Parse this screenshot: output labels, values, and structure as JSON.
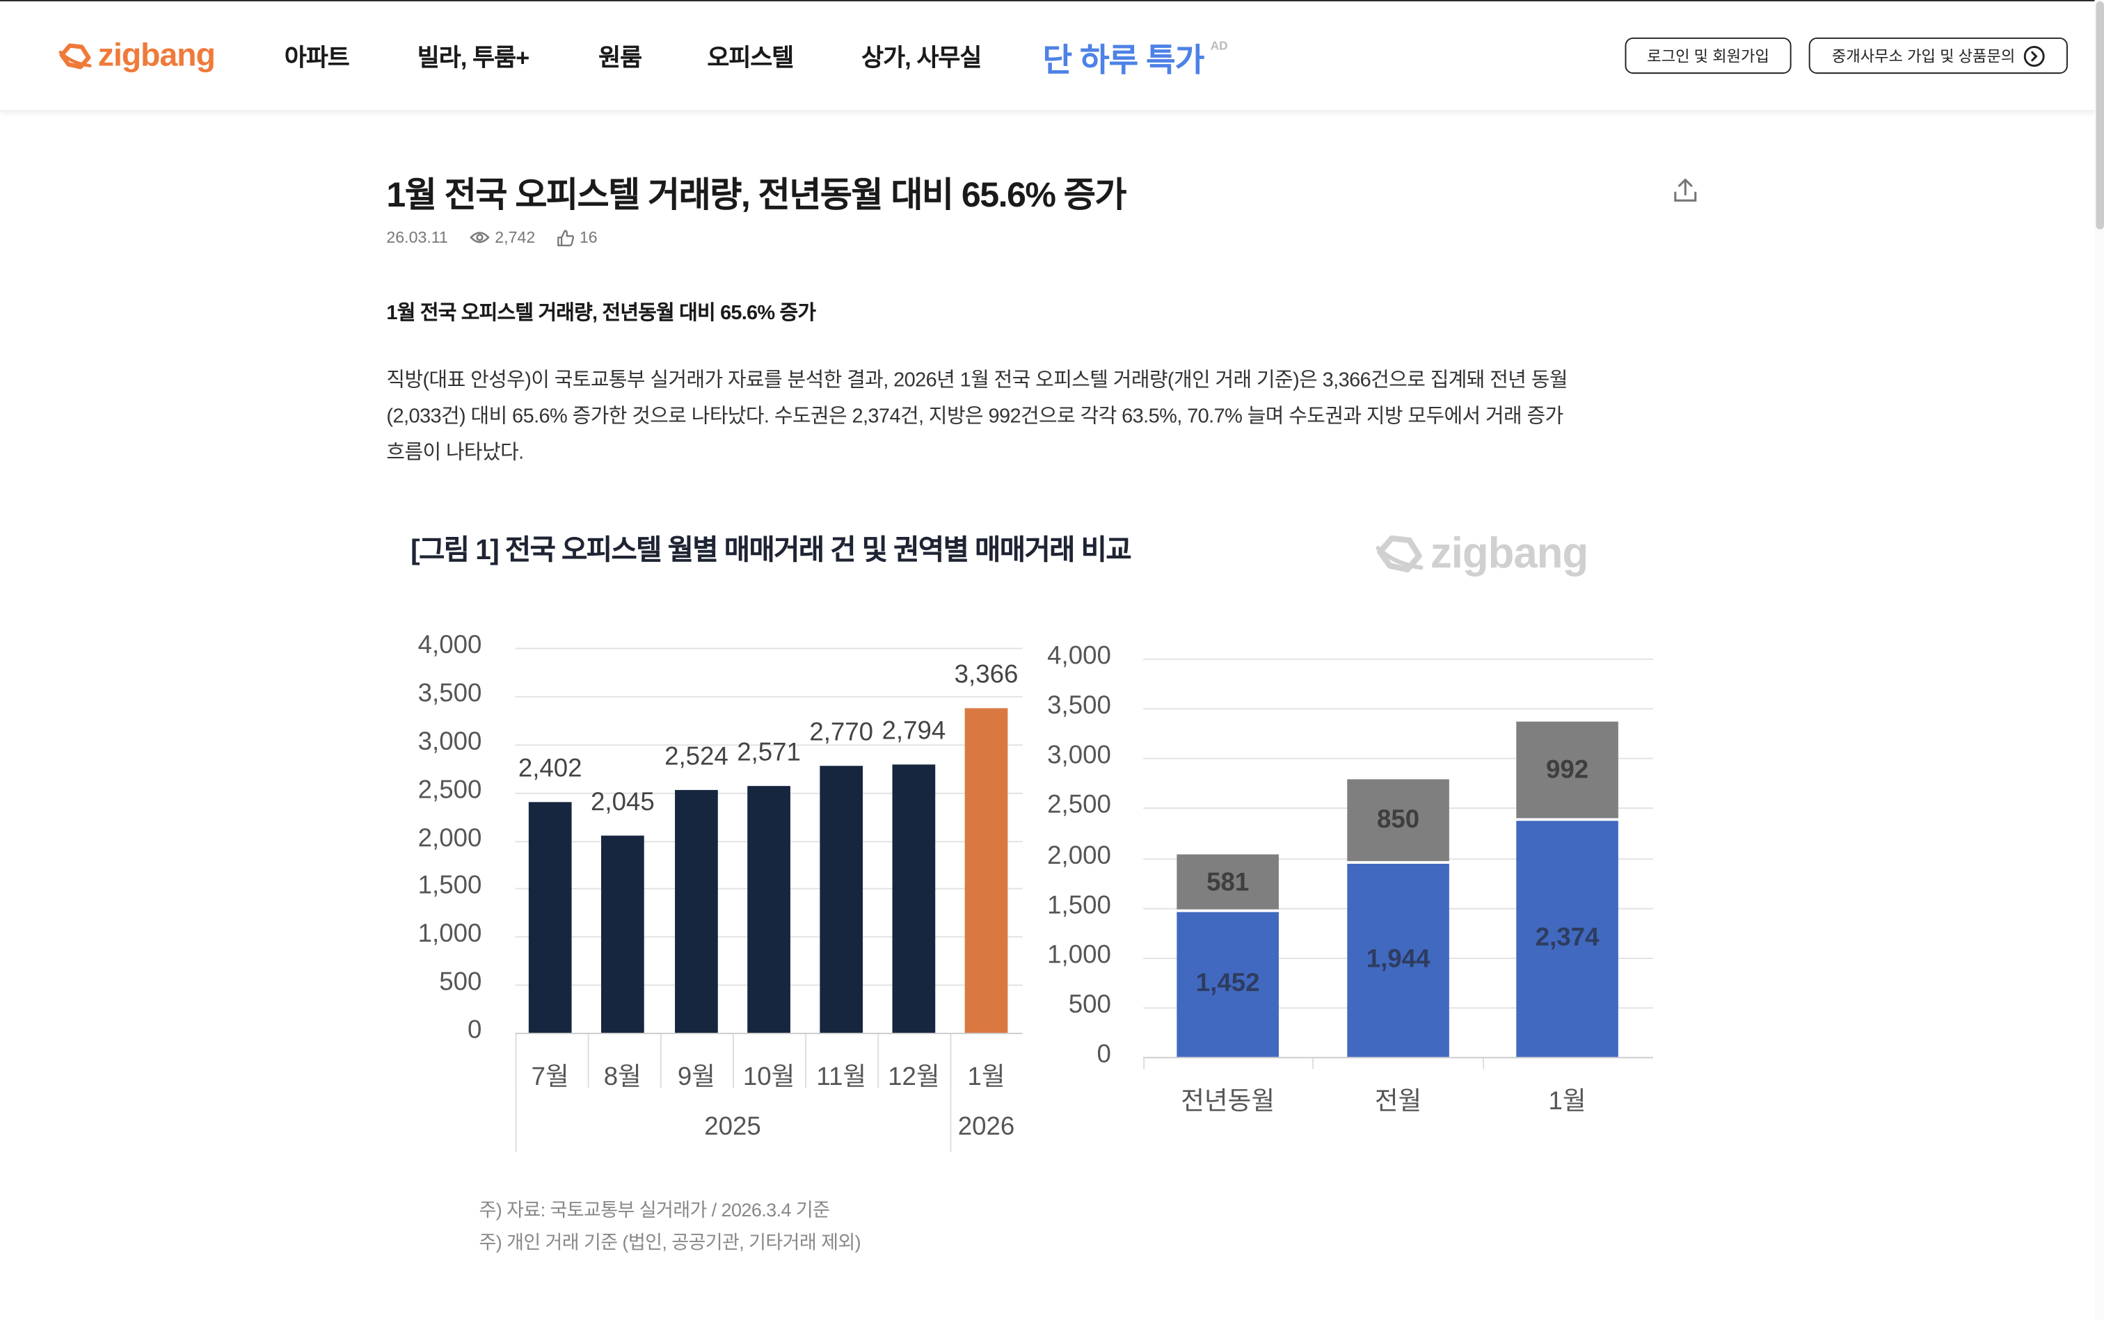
{
  "header": {
    "logo_text": "zigbang",
    "nav": [
      {
        "label": "아파트"
      },
      {
        "label": "빌라, 투룸+"
      },
      {
        "label": "원룸"
      },
      {
        "label": "오피스텔"
      },
      {
        "label": "상가, 사무실"
      },
      {
        "label": "단 하루 특가",
        "badge": "AD"
      }
    ],
    "login_button": "로그인 및 회원가입",
    "agent_button": "중개사무소 가입 및 상품문의"
  },
  "article": {
    "title": "1월 전국 오피스텔 거래량, 전년동월 대비 65.6% 증가",
    "date": "26.03.11",
    "views": "2,742",
    "likes": "16",
    "subheading": "1월 전국 오피스텔 거래량, 전년동월 대비 65.6% 증가",
    "paragraph_lines": [
      "직방(대표 안성우)이 국토교통부 실거래가 자료를 분석한 결과, 2026년 1월 전국 오피스텔 거래량(개인 거래 기준)은 3,366건으로 집계돼 전년 동월",
      "(2,033건) 대비 65.6% 증가한 것으로 나타났다. 수도권은 2,374건, 지방은 992건으로 각각 63.5%, 70.7% 늘며 수도권과 지방 모두에서 거래 증가",
      "흐름이 나타났다."
    ]
  },
  "figure": {
    "title": "[그림 1] 전국 오피스텔 월별 매매거래 건 및 권역별 매매거래 비교",
    "watermark": "zigbang",
    "notes": [
      "주) 자료: 국토교통부 실거래가 / 2026.3.4 기준",
      "주) 개인 거래 기준 (법인, 공공기관, 기타거래 제외)"
    ]
  },
  "colors": {
    "brand_orange": "#ef7a3a",
    "ad_blue": "#4d82e6",
    "bar_navy": "#17263f",
    "bar_orange": "#d97941",
    "bar_blue": "#4169bf",
    "bar_gray": "#7f7f7f"
  },
  "chart_data": [
    {
      "type": "bar",
      "title": "전국 오피스텔 월별 매매거래 건",
      "categories": [
        "7월",
        "8월",
        "9월",
        "10월",
        "11월",
        "12월",
        "1월"
      ],
      "group_labels": [
        {
          "label": "2025",
          "span": 6
        },
        {
          "label": "2026",
          "span": 1
        }
      ],
      "values": [
        2402,
        2045,
        2524,
        2571,
        2770,
        2794,
        3366
      ],
      "value_labels": [
        "2,402",
        "2,045",
        "2,524",
        "2,571",
        "2,770",
        "2,794",
        "3,366"
      ],
      "highlight_index": 6,
      "yticks": [
        "0",
        "500",
        "1,000",
        "1,500",
        "2,000",
        "2,500",
        "3,000",
        "3,500",
        "4,000"
      ],
      "ylim": [
        0,
        4000
      ],
      "xlabel": "",
      "ylabel": "",
      "grid": true
    },
    {
      "type": "bar",
      "stacked": true,
      "title": "권역별 매매거래 비교",
      "categories": [
        "전년동월",
        "전월",
        "1월"
      ],
      "series": [
        {
          "name": "수도권",
          "values": [
            1452,
            1944,
            2374
          ],
          "labels": [
            "1,452",
            "1,944",
            "2,374"
          ]
        },
        {
          "name": "지방",
          "values": [
            581,
            850,
            992
          ],
          "labels": [
            "581",
            "850",
            "992"
          ]
        }
      ],
      "yticks": [
        "0",
        "500",
        "1,000",
        "1,500",
        "2,000",
        "2,500",
        "3,000",
        "3,500",
        "4,000"
      ],
      "ylim": [
        0,
        4000
      ],
      "xlabel": "",
      "ylabel": "",
      "grid": true
    }
  ]
}
